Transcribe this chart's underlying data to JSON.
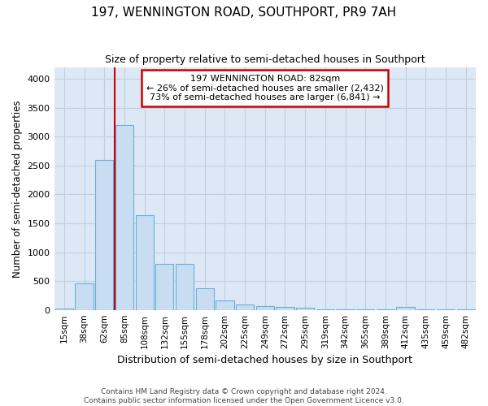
{
  "title": "197, WENNINGTON ROAD, SOUTHPORT, PR9 7AH",
  "subtitle": "Size of property relative to semi-detached houses in Southport",
  "xlabel": "Distribution of semi-detached houses by size in Southport",
  "ylabel": "Number of semi-detached properties",
  "footer1": "Contains HM Land Registry data © Crown copyright and database right 2024.",
  "footer2": "Contains public sector information licensed under the Open Government Licence v3.0.",
  "annotation_title": "197 WENNINGTON ROAD: 82sqm",
  "annotation_line2": "← 26% of semi-detached houses are smaller (2,432)",
  "annotation_line3": "73% of semi-detached houses are larger (6,841) →",
  "categories": [
    "15sqm",
    "38sqm",
    "62sqm",
    "85sqm",
    "108sqm",
    "132sqm",
    "155sqm",
    "178sqm",
    "202sqm",
    "225sqm",
    "249sqm",
    "272sqm",
    "295sqm",
    "319sqm",
    "342sqm",
    "365sqm",
    "389sqm",
    "412sqm",
    "435sqm",
    "459sqm",
    "482sqm"
  ],
  "values": [
    25,
    460,
    2600,
    3200,
    1640,
    800,
    800,
    380,
    160,
    90,
    70,
    55,
    40,
    5,
    5,
    5,
    5,
    50,
    5,
    5,
    5
  ],
  "bar_color": "#c9ddf2",
  "bar_edge_color": "#6baed6",
  "vline_color": "#cc0000",
  "annotation_box_color": "#cc0000",
  "grid_color": "#c0cfe0",
  "bg_color": "#dce8f5",
  "ylim": [
    0,
    4200
  ],
  "yticks": [
    0,
    500,
    1000,
    1500,
    2000,
    2500,
    3000,
    3500,
    4000
  ]
}
